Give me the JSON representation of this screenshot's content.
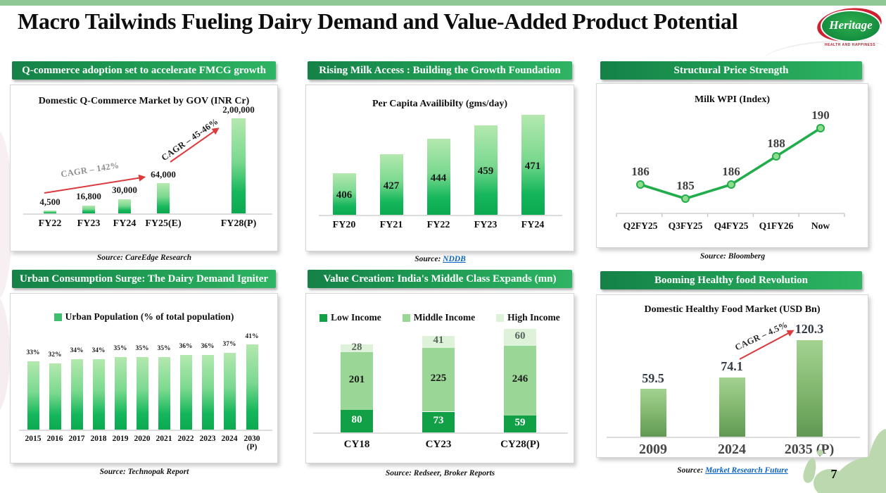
{
  "slide": {
    "title": "Macro Tailwinds Fueling Dairy Demand and Value-Added Product Potential",
    "page_number": "7",
    "logo": {
      "brand": "Heritage",
      "tagline": "HEALTH AND HAPPINESS"
    }
  },
  "colors": {
    "top_strip_green": "#8fc894",
    "header_gradient_left": "#158147",
    "header_gradient_right": "#2eb463",
    "bright_bar_top": "#b4e8af",
    "bright_bar_bottom": "#0ba950",
    "sage_bar_top": "#a3d291",
    "sage_bar_bottom": "#619754",
    "line_green": "#21ad4b",
    "arrow_red": "#dd3a3e",
    "link_blue": "#0b63c5",
    "splash_green": "#bcd8ae",
    "logo_green": "#138c3e",
    "logo_red": "#cf2030"
  },
  "chart_data": [
    {
      "type": "bar",
      "panel_header": "Q-commerce adoption set to accelerate FMCG growth",
      "title": "Domestic Q-Commerce Market by GOV (INR Cr)",
      "categories": [
        "FY22",
        "FY23",
        "FY24",
        "FY25(E)",
        "FY28(P)"
      ],
      "values": [
        4500,
        16800,
        30000,
        64000,
        200000
      ],
      "value_labels": [
        "4,500",
        "16,800",
        "30,000",
        "64,000",
        "2,00,000"
      ],
      "ylim": [
        0,
        200000
      ],
      "grid": false,
      "annotations": [
        {
          "text": "CAGR – 142%"
        },
        {
          "text": "CAGR – 45-46%"
        }
      ],
      "source_label": "Source:",
      "source_text": "CareEdge Research",
      "source_is_link": false
    },
    {
      "type": "bar",
      "panel_header": "Rising Milk Access : Building the Growth Foundation",
      "title": "Per Capita Availibilty (gms/day)",
      "categories": [
        "FY20",
        "FY21",
        "FY22",
        "FY23",
        "FY24"
      ],
      "values": [
        406,
        427,
        444,
        459,
        471
      ],
      "value_labels": [
        "406",
        "427",
        "444",
        "459",
        "471"
      ],
      "grid": false,
      "source_label": "Source:",
      "source_text": "NDDB",
      "source_is_link": true
    },
    {
      "type": "line",
      "panel_header": "Structural Price Strength",
      "title": "Milk WPI (Index)",
      "categories": [
        "Q2FY25",
        "Q3FY25",
        "Q4FY25",
        "Q1FY26",
        "Now"
      ],
      "values": [
        186,
        185,
        186,
        188,
        190
      ],
      "value_labels": [
        "186",
        "185",
        "186",
        "188",
        "190"
      ],
      "grid": false,
      "source_label": "Source:",
      "source_text": "Bloomberg",
      "source_is_link": false
    },
    {
      "type": "bar",
      "panel_header": "Urban Consumption Surge: The Dairy Demand Igniter",
      "legend": [
        "Urban Population (% of total population)"
      ],
      "legend_color": "#3fbf6e",
      "categories": [
        "2015",
        "2016",
        "2017",
        "2018",
        "2019",
        "2020",
        "2021",
        "2022",
        "2023",
        "2024",
        "2030 (P)"
      ],
      "values": [
        33,
        32,
        34,
        34,
        35,
        35,
        35,
        36,
        36,
        37,
        41
      ],
      "value_labels": [
        "33%",
        "32%",
        "34%",
        "34%",
        "35%",
        "35%",
        "35%",
        "36%",
        "36%",
        "37%",
        "41%"
      ],
      "grid": false,
      "source_label": "Source:",
      "source_text": "Technopak Report",
      "source_is_link": false
    },
    {
      "type": "stacked-bar",
      "panel_header": "Value Creation: India's Middle Class Expands (mn)",
      "categories": [
        "CY18",
        "CY23",
        "CY28(P)"
      ],
      "series": [
        {
          "name": "Low Income",
          "color": "#12a047",
          "values": [
            80,
            73,
            59
          ]
        },
        {
          "name": "Middle Income",
          "color": "#9ad695",
          "values": [
            201,
            225,
            246
          ]
        },
        {
          "name": "High Income",
          "color": "#def2da",
          "values": [
            28,
            41,
            60
          ]
        }
      ],
      "grid": false,
      "source_label": "Source:",
      "source_text": "Redseer, Broker Reports",
      "source_is_link": false
    },
    {
      "type": "bar",
      "panel_header": "Booming Healthy food Revolution",
      "title": "Domestic Healthy Food Market (USD Bn)",
      "categories": [
        "2009",
        "2024",
        "2035 (P)"
      ],
      "values": [
        59.5,
        74.1,
        120.3
      ],
      "value_labels": [
        "59.5",
        "74.1",
        "120.3"
      ],
      "grid": false,
      "annotations": [
        {
          "text": "CAGR – 4.5%"
        }
      ],
      "source_label": "Source:",
      "source_text": "Market Research Future",
      "source_is_link": true
    }
  ]
}
